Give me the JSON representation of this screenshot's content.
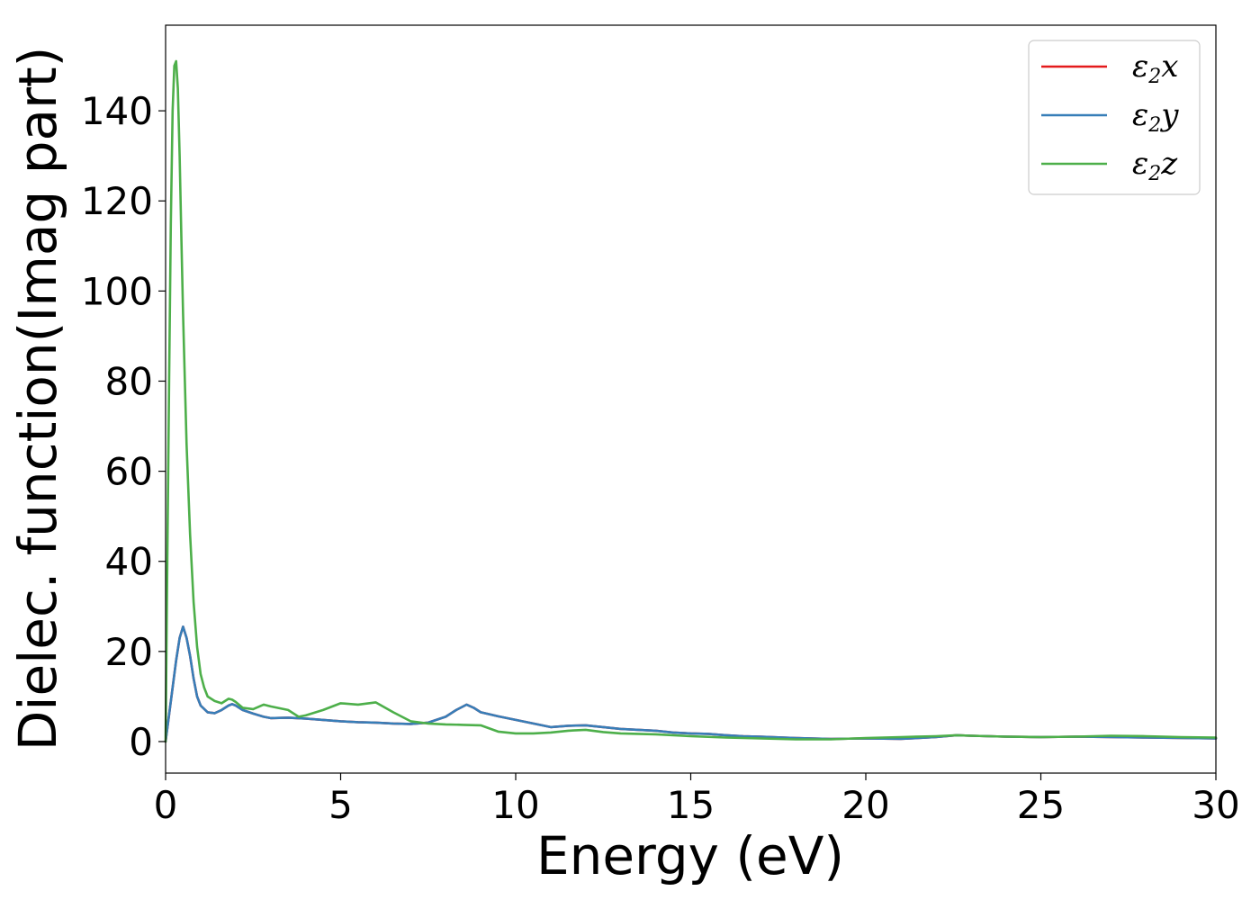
{
  "chart_data": {
    "type": "line",
    "xlabel": "Energy (eV)",
    "ylabel": "Dielec. function(Imag part)",
    "xlim": [
      0,
      30
    ],
    "ylim": [
      -7,
      159
    ],
    "xticks": [
      0,
      5,
      10,
      15,
      20,
      25,
      30
    ],
    "yticks": [
      0,
      20,
      40,
      60,
      80,
      100,
      120,
      140
    ],
    "grid": false,
    "legend_position": "top-right",
    "series": [
      {
        "name": "ε2x",
        "legend_base": "ε",
        "legend_sub": "2",
        "legend_var": "x",
        "color": "#e41a1c",
        "x": [
          0,
          0.1,
          0.2,
          0.3,
          0.4,
          0.5,
          0.6,
          0.7,
          0.8,
          0.9,
          1.0,
          1.2,
          1.4,
          1.6,
          1.8,
          1.9,
          2.0,
          2.2,
          2.5,
          2.8,
          3.0,
          3.5,
          4.0,
          4.5,
          5.0,
          5.5,
          6.0,
          6.5,
          7.0,
          7.5,
          8.0,
          8.3,
          8.6,
          8.8,
          9.0,
          9.5,
          10.0,
          10.5,
          11.0,
          11.5,
          12.0,
          12.5,
          13.0,
          13.5,
          14.0,
          14.5,
          15.0,
          15.5,
          16.0,
          16.5,
          17.0,
          18.0,
          19.0,
          20.0,
          21.0,
          22.0,
          22.6,
          23.0,
          24.0,
          25.0,
          26.0,
          27.0,
          28.0,
          29.0,
          30.0
        ],
        "y": [
          0,
          6,
          12,
          18,
          23,
          25.5,
          23,
          19,
          14,
          10,
          8,
          6.5,
          6.3,
          7,
          8,
          8.3,
          8,
          7,
          6.2,
          5.5,
          5.2,
          5.3,
          5.1,
          4.8,
          4.5,
          4.3,
          4.2,
          4,
          3.9,
          4.2,
          5.5,
          7,
          8.2,
          7.5,
          6.5,
          5.6,
          4.8,
          4,
          3.2,
          3.5,
          3.6,
          3.2,
          2.8,
          2.6,
          2.4,
          2.0,
          1.8,
          1.7,
          1.4,
          1.2,
          1.1,
          0.8,
          0.6,
          0.7,
          0.6,
          1.0,
          1.4,
          1.3,
          1.1,
          1.0,
          1.1,
          1.0,
          0.9,
          0.8,
          0.7
        ]
      },
      {
        "name": "ε2y",
        "legend_base": "ε",
        "legend_sub": "2",
        "legend_var": "y",
        "color": "#377eb8",
        "x": [
          0,
          0.1,
          0.2,
          0.3,
          0.4,
          0.5,
          0.6,
          0.7,
          0.8,
          0.9,
          1.0,
          1.2,
          1.4,
          1.6,
          1.8,
          1.9,
          2.0,
          2.2,
          2.5,
          2.8,
          3.0,
          3.5,
          4.0,
          4.5,
          5.0,
          5.5,
          6.0,
          6.5,
          7.0,
          7.5,
          8.0,
          8.3,
          8.6,
          8.8,
          9.0,
          9.5,
          10.0,
          10.5,
          11.0,
          11.5,
          12.0,
          12.5,
          13.0,
          13.5,
          14.0,
          14.5,
          15.0,
          15.5,
          16.0,
          16.5,
          17.0,
          18.0,
          19.0,
          20.0,
          21.0,
          22.0,
          22.6,
          23.0,
          24.0,
          25.0,
          26.0,
          27.0,
          28.0,
          29.0,
          30.0
        ],
        "y": [
          0,
          6,
          12,
          18,
          23,
          25.5,
          23,
          19,
          14,
          10,
          8,
          6.5,
          6.3,
          7,
          8,
          8.3,
          8,
          7,
          6.2,
          5.5,
          5.2,
          5.3,
          5.1,
          4.8,
          4.5,
          4.3,
          4.2,
          4,
          3.9,
          4.2,
          5.5,
          7,
          8.2,
          7.5,
          6.5,
          5.6,
          4.8,
          4,
          3.2,
          3.5,
          3.6,
          3.2,
          2.8,
          2.6,
          2.4,
          2.0,
          1.8,
          1.7,
          1.4,
          1.2,
          1.1,
          0.8,
          0.6,
          0.7,
          0.6,
          1.0,
          1.4,
          1.3,
          1.1,
          1.0,
          1.1,
          1.0,
          0.9,
          0.8,
          0.7
        ]
      },
      {
        "name": "ε2z",
        "legend_base": "ε",
        "legend_sub": "2",
        "legend_var": "z",
        "color": "#4daf4a",
        "x": [
          0,
          0.05,
          0.1,
          0.15,
          0.2,
          0.25,
          0.3,
          0.35,
          0.4,
          0.45,
          0.5,
          0.55,
          0.6,
          0.7,
          0.8,
          0.9,
          1.0,
          1.1,
          1.2,
          1.4,
          1.6,
          1.8,
          1.9,
          2.0,
          2.2,
          2.5,
          2.8,
          3.0,
          3.5,
          3.8,
          4.0,
          4.5,
          5.0,
          5.5,
          6.0,
          6.5,
          7.0,
          7.5,
          8.0,
          8.5,
          9.0,
          9.5,
          10.0,
          10.5,
          11.0,
          11.5,
          12.0,
          12.5,
          13.0,
          13.5,
          14.0,
          15.0,
          16.0,
          17.0,
          18.0,
          19.0,
          20.0,
          21.0,
          22.0,
          22.6,
          23.0,
          24.0,
          25.0,
          26.0,
          27.0,
          28.0,
          29.0,
          30.0
        ],
        "y": [
          0,
          40,
          80,
          115,
          140,
          150,
          151,
          145,
          130,
          112,
          95,
          80,
          66,
          46,
          31,
          21,
          15,
          12,
          10,
          9,
          8.5,
          9.5,
          9.3,
          8.8,
          7.5,
          7.2,
          8.2,
          7.8,
          7,
          5.5,
          5.8,
          7,
          8.5,
          8.2,
          8.7,
          6.5,
          4.5,
          4,
          3.8,
          3.7,
          3.6,
          2.2,
          1.8,
          1.8,
          2.0,
          2.4,
          2.6,
          2.1,
          1.8,
          1.7,
          1.6,
          1.2,
          0.9,
          0.7,
          0.5,
          0.5,
          0.8,
          1.0,
          1.2,
          1.4,
          1.3,
          1.1,
          1.0,
          1.1,
          1.3,
          1.2,
          1.0,
          0.9
        ]
      }
    ]
  }
}
